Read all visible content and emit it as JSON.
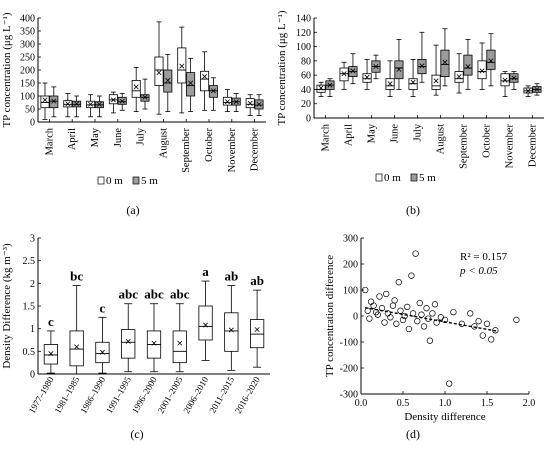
{
  "panel_labels": [
    "(a)",
    "(b)",
    "(c)",
    "(d)"
  ],
  "chart_data": [
    {
      "type": "box",
      "panel": "(a)",
      "ylabel": "TP concentration (μg L⁻¹)",
      "ylim": [
        0,
        400
      ],
      "yticks": [
        0,
        50,
        100,
        150,
        200,
        250,
        300,
        350,
        400
      ],
      "categories": [
        "March",
        "April",
        "May",
        "June",
        "July",
        "August",
        "September",
        "October",
        "November",
        "December"
      ],
      "legend": [
        "0 m",
        "5 m"
      ],
      "series": [
        {
          "name": "0 m",
          "color": "#ffffff",
          "boxes": [
            {
              "min": 10,
              "q1": 55,
              "median": 75,
              "q3": 100,
              "max": 150,
              "mean": 85
            },
            {
              "min": 20,
              "q1": 58,
              "median": 68,
              "q3": 82,
              "max": 110,
              "mean": 70
            },
            {
              "min": 20,
              "q1": 55,
              "median": 66,
              "q3": 80,
              "max": 105,
              "mean": 68
            },
            {
              "min": 35,
              "q1": 70,
              "median": 85,
              "q3": 105,
              "max": 115,
              "mean": 85
            },
            {
              "min": 40,
              "q1": 95,
              "median": 120,
              "q3": 160,
              "max": 210,
              "mean": 135
            },
            {
              "min": 30,
              "q1": 140,
              "median": 200,
              "q3": 250,
              "max": 385,
              "mean": 190
            },
            {
              "min": 35,
              "q1": 150,
              "median": 200,
              "q3": 285,
              "max": 365,
              "mean": 215
            },
            {
              "min": 45,
              "q1": 120,
              "median": 165,
              "q3": 195,
              "max": 270,
              "mean": 175
            },
            {
              "min": 40,
              "q1": 65,
              "median": 75,
              "q3": 95,
              "max": 125,
              "mean": 78
            },
            {
              "min": 25,
              "q1": 55,
              "median": 68,
              "q3": 90,
              "max": 105,
              "mean": 72
            }
          ]
        },
        {
          "name": "5 m",
          "color": "#9c9c9c",
          "boxes": [
            {
              "min": 20,
              "q1": 55,
              "median": 80,
              "q3": 100,
              "max": 135,
              "mean": 80
            },
            {
              "min": 20,
              "q1": 58,
              "median": 68,
              "q3": 80,
              "max": 100,
              "mean": 70
            },
            {
              "min": 20,
              "q1": 55,
              "median": 66,
              "q3": 78,
              "max": 100,
              "mean": 68
            },
            {
              "min": 45,
              "q1": 68,
              "median": 78,
              "q3": 95,
              "max": 110,
              "mean": 80
            },
            {
              "min": 50,
              "q1": 80,
              "median": 95,
              "q3": 105,
              "max": 165,
              "mean": 95
            },
            {
              "min": 40,
              "q1": 115,
              "median": 150,
              "q3": 200,
              "max": 260,
              "mean": 160
            },
            {
              "min": 40,
              "q1": 100,
              "median": 140,
              "q3": 190,
              "max": 245,
              "mean": 150
            },
            {
              "min": 45,
              "q1": 95,
              "median": 120,
              "q3": 140,
              "max": 170,
              "mean": 120
            },
            {
              "min": 40,
              "q1": 65,
              "median": 78,
              "q3": 92,
              "max": 110,
              "mean": 78
            },
            {
              "min": 25,
              "q1": 50,
              "median": 65,
              "q3": 85,
              "max": 105,
              "mean": 68
            }
          ]
        }
      ]
    },
    {
      "type": "box",
      "panel": "(b)",
      "ylabel": "TP concentration (μg L⁻¹)",
      "ylim": [
        0,
        140
      ],
      "yticks": [
        0,
        20,
        40,
        60,
        80,
        100,
        120,
        140
      ],
      "categories": [
        "March",
        "April",
        "May",
        "June",
        "July",
        "August",
        "September",
        "October",
        "November",
        "December"
      ],
      "legend": [
        "0 m",
        "5 m"
      ],
      "series": [
        {
          "name": "0 m",
          "color": "#ffffff",
          "boxes": [
            {
              "min": 30,
              "q1": 36,
              "median": 40,
              "q3": 46,
              "max": 50,
              "mean": 42
            },
            {
              "min": 40,
              "q1": 52,
              "median": 62,
              "q3": 70,
              "max": 78,
              "mean": 62
            },
            {
              "min": 40,
              "q1": 50,
              "median": 55,
              "q3": 62,
              "max": 82,
              "mean": 57
            },
            {
              "min": 30,
              "q1": 40,
              "median": 45,
              "q3": 55,
              "max": 80,
              "mean": 48
            },
            {
              "min": 30,
              "q1": 40,
              "median": 48,
              "q3": 55,
              "max": 82,
              "mean": 50
            },
            {
              "min": 32,
              "q1": 40,
              "median": 45,
              "q3": 60,
              "max": 102,
              "mean": 52
            },
            {
              "min": 35,
              "q1": 50,
              "median": 55,
              "q3": 65,
              "max": 90,
              "mean": 58
            },
            {
              "min": 40,
              "q1": 55,
              "median": 65,
              "q3": 80,
              "max": 105,
              "mean": 66
            },
            {
              "min": 30,
              "q1": 45,
              "median": 52,
              "q3": 62,
              "max": 65,
              "mean": 53
            },
            {
              "min": 30,
              "q1": 35,
              "median": 38,
              "q3": 42,
              "max": 45,
              "mean": 38
            }
          ]
        },
        {
          "name": "5 m",
          "color": "#9c9c9c",
          "boxes": [
            {
              "min": 30,
              "q1": 40,
              "median": 46,
              "q3": 52,
              "max": 55,
              "mean": 46
            },
            {
              "min": 48,
              "q1": 58,
              "median": 65,
              "q3": 72,
              "max": 90,
              "mean": 66
            },
            {
              "min": 55,
              "q1": 64,
              "median": 72,
              "q3": 80,
              "max": 88,
              "mean": 72
            },
            {
              "min": 40,
              "q1": 55,
              "median": 70,
              "q3": 80,
              "max": 110,
              "mean": 68
            },
            {
              "min": 50,
              "q1": 62,
              "median": 72,
              "q3": 82,
              "max": 120,
              "mean": 73
            },
            {
              "min": 45,
              "q1": 58,
              "median": 75,
              "q3": 95,
              "max": 125,
              "mean": 78
            },
            {
              "min": 40,
              "q1": 60,
              "median": 70,
              "q3": 88,
              "max": 110,
              "mean": 72
            },
            {
              "min": 45,
              "q1": 68,
              "median": 78,
              "q3": 95,
              "max": 118,
              "mean": 80
            },
            {
              "min": 40,
              "q1": 50,
              "median": 55,
              "q3": 62,
              "max": 65,
              "mean": 56
            },
            {
              "min": 32,
              "q1": 36,
              "median": 40,
              "q3": 44,
              "max": 48,
              "mean": 40
            }
          ]
        }
      ]
    },
    {
      "type": "box",
      "panel": "(c)",
      "ylabel": "Density Difference (kg m⁻³)",
      "ylim": [
        0,
        3
      ],
      "yticks": [
        0,
        0.5,
        1,
        1.5,
        2,
        2.5,
        3
      ],
      "ytick_labels": [
        "0",
        "0.5",
        "1",
        "1.5",
        "2",
        "2.5",
        "3"
      ],
      "categories": [
        "1977–1980",
        "1981–1985",
        "1986–1990",
        "1991–1995",
        "1996–2000",
        "2001–2005",
        "2006–2010",
        "2011–2015",
        "2016–2020"
      ],
      "letters": [
        "c",
        "bc",
        "c",
        "abc",
        "abc",
        "abc",
        "a",
        "ab",
        "ab"
      ],
      "boxes": [
        {
          "min": 0.02,
          "q1": 0.22,
          "median": 0.42,
          "q3": 0.65,
          "max": 0.95,
          "mean": 0.45
        },
        {
          "min": 0.0,
          "q1": 0.18,
          "median": 0.55,
          "q3": 0.95,
          "max": 1.95,
          "mean": 0.6
        },
        {
          "min": 0.02,
          "q1": 0.25,
          "median": 0.45,
          "q3": 0.7,
          "max": 1.25,
          "mean": 0.48
        },
        {
          "min": 0.05,
          "q1": 0.35,
          "median": 0.7,
          "q3": 0.98,
          "max": 1.55,
          "mean": 0.72
        },
        {
          "min": 0.05,
          "q1": 0.35,
          "median": 0.65,
          "q3": 0.95,
          "max": 1.55,
          "mean": 0.68
        },
        {
          "min": 0.05,
          "q1": 0.25,
          "median": 0.5,
          "q3": 0.95,
          "max": 1.55,
          "mean": 0.68
        },
        {
          "min": 0.3,
          "q1": 0.75,
          "median": 1.05,
          "q3": 1.5,
          "max": 2.05,
          "mean": 1.08
        },
        {
          "min": 0.08,
          "q1": 0.5,
          "median": 0.95,
          "q3": 1.35,
          "max": 1.95,
          "mean": 0.97
        },
        {
          "min": 0.15,
          "q1": 0.58,
          "median": 0.88,
          "q3": 1.2,
          "max": 1.85,
          "mean": 0.98
        }
      ]
    },
    {
      "type": "scatter",
      "panel": "(d)",
      "xlabel": "Density difference",
      "ylabel": "TP concentration difference",
      "xlim": [
        0,
        2
      ],
      "ylim": [
        -300,
        300
      ],
      "xticks": [
        0,
        0.5,
        1,
        1.5,
        2
      ],
      "xtick_labels": [
        "0.0",
        "0.5",
        "1.0",
        "1.5",
        "2.0"
      ],
      "yticks": [
        -300,
        -200,
        -100,
        0,
        100,
        200,
        300
      ],
      "annotation_r2": "R² = 0.157",
      "annotation_p": "p < 0.05",
      "trendline": {
        "x": [
          0.05,
          1.62
        ],
        "y": [
          32,
          -58
        ]
      },
      "points": [
        {
          "x": 0.05,
          "y": 100
        },
        {
          "x": 0.08,
          "y": 20
        },
        {
          "x": 0.1,
          "y": -10
        },
        {
          "x": 0.12,
          "y": 55
        },
        {
          "x": 0.15,
          "y": 40
        },
        {
          "x": 0.18,
          "y": 15
        },
        {
          "x": 0.2,
          "y": 5
        },
        {
          "x": 0.22,
          "y": 75
        },
        {
          "x": 0.25,
          "y": 30
        },
        {
          "x": 0.28,
          "y": -25
        },
        {
          "x": 0.3,
          "y": 85
        },
        {
          "x": 0.32,
          "y": 10
        },
        {
          "x": 0.35,
          "y": -5
        },
        {
          "x": 0.38,
          "y": 40
        },
        {
          "x": 0.4,
          "y": 60
        },
        {
          "x": 0.42,
          "y": -30
        },
        {
          "x": 0.45,
          "y": 130
        },
        {
          "x": 0.47,
          "y": 20
        },
        {
          "x": 0.5,
          "y": -15
        },
        {
          "x": 0.52,
          "y": 0
        },
        {
          "x": 0.55,
          "y": 35
        },
        {
          "x": 0.57,
          "y": -50
        },
        {
          "x": 0.6,
          "y": 155
        },
        {
          "x": 0.62,
          "y": 10
        },
        {
          "x": 0.65,
          "y": 240
        },
        {
          "x": 0.67,
          "y": -20
        },
        {
          "x": 0.7,
          "y": 50
        },
        {
          "x": 0.72,
          "y": 5
        },
        {
          "x": 0.75,
          "y": -40
        },
        {
          "x": 0.78,
          "y": 30
        },
        {
          "x": 0.8,
          "y": -10
        },
        {
          "x": 0.82,
          "y": -95
        },
        {
          "x": 0.85,
          "y": 10
        },
        {
          "x": 0.88,
          "y": 45
        },
        {
          "x": 0.9,
          "y": -25
        },
        {
          "x": 0.95,
          "y": -5
        },
        {
          "x": 1.0,
          "y": -15
        },
        {
          "x": 1.05,
          "y": -260
        },
        {
          "x": 1.1,
          "y": 15
        },
        {
          "x": 1.2,
          "y": -30
        },
        {
          "x": 1.3,
          "y": 10
        },
        {
          "x": 1.35,
          "y": -40
        },
        {
          "x": 1.4,
          "y": -20
        },
        {
          "x": 1.45,
          "y": -75
        },
        {
          "x": 1.5,
          "y": -30
        },
        {
          "x": 1.55,
          "y": -90
        },
        {
          "x": 1.6,
          "y": -55
        },
        {
          "x": 1.85,
          "y": -15
        }
      ]
    }
  ]
}
